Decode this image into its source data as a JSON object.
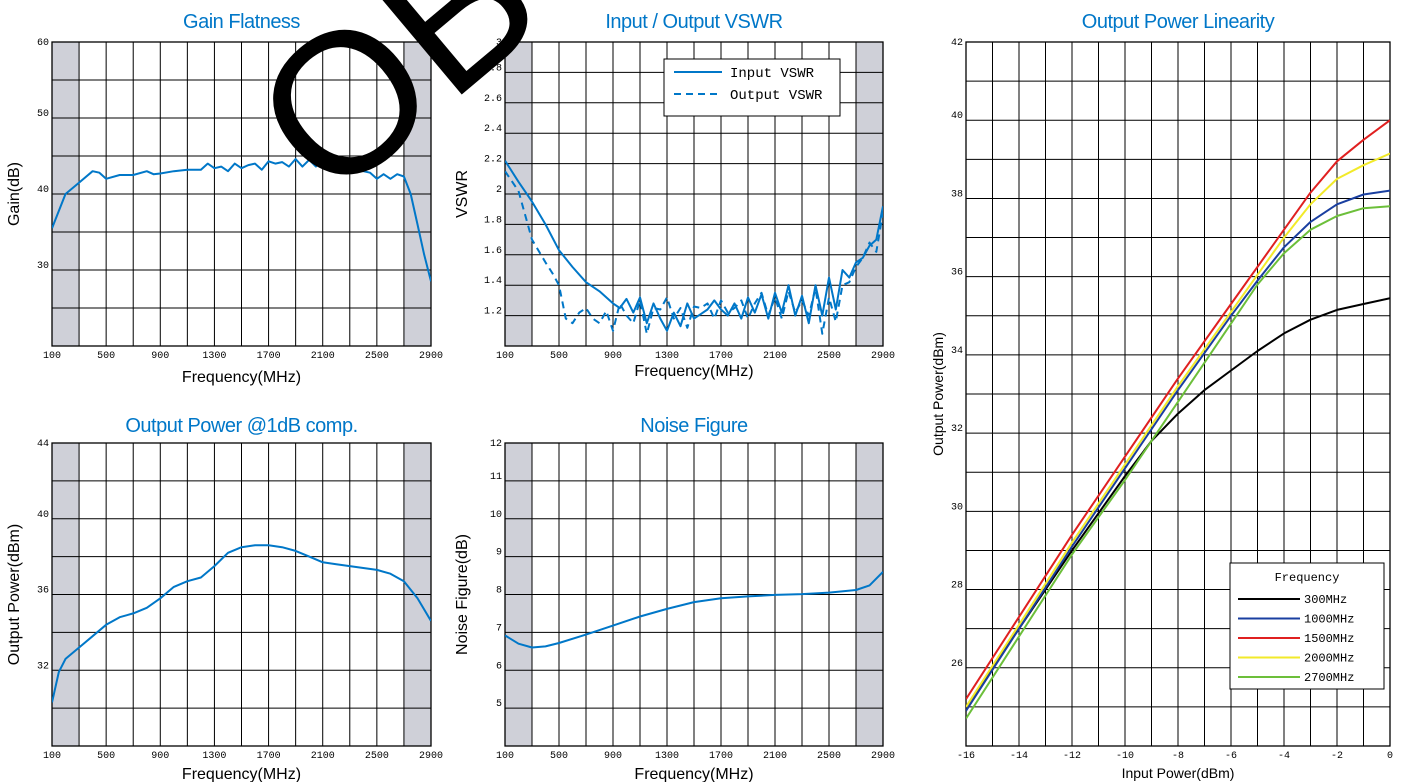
{
  "chart_data": [
    {
      "id": "gain",
      "type": "line",
      "title": "Gain Flatness",
      "xlabel": "Frequency(MHz)",
      "ylabel": "Gain(dB)",
      "xlim": [
        100,
        2900
      ],
      "ylim": [
        20,
        60
      ],
      "xticks": [
        100,
        500,
        900,
        1300,
        1700,
        2100,
        2500,
        2900
      ],
      "yticks": [
        30,
        40,
        50,
        60
      ],
      "shaded": [
        [
          100,
          300
        ],
        [
          2700,
          2900
        ]
      ],
      "series": [
        {
          "color": "#0077c8",
          "dash": false,
          "x": [
            100,
            200,
            300,
            400,
            450,
            500,
            600,
            700,
            800,
            850,
            900,
            1000,
            1100,
            1200,
            1250,
            1300,
            1350,
            1400,
            1450,
            1500,
            1550,
            1600,
            1650,
            1700,
            1750,
            1800,
            1850,
            1900,
            1950,
            2000,
            2050,
            2100,
            2150,
            2200,
            2250,
            2300,
            2350,
            2400,
            2450,
            2500,
            2550,
            2600,
            2650,
            2700,
            2750,
            2800,
            2850,
            2900
          ],
          "y": [
            35.5,
            40.0,
            41.5,
            43.0,
            42.8,
            42.0,
            42.5,
            42.5,
            43.0,
            42.6,
            42.7,
            43.0,
            43.2,
            43.2,
            44.0,
            43.4,
            43.6,
            43.0,
            44.0,
            43.4,
            43.8,
            44.0,
            43.2,
            44.3,
            44.0,
            44.2,
            43.6,
            44.6,
            43.6,
            44.5,
            43.6,
            44.7,
            43.8,
            44.4,
            43.6,
            44.2,
            43.4,
            43.0,
            42.8,
            42.0,
            42.6,
            42.0,
            42.6,
            42.3,
            40.0,
            36.0,
            32.0,
            28.5
          ]
        }
      ]
    },
    {
      "id": "vswr",
      "type": "line",
      "title": "Input / Output VSWR",
      "xlabel": "Frequency(MHz)",
      "ylabel": "VSWR",
      "xlim": [
        100,
        2900
      ],
      "ylim": [
        1.0,
        3.0
      ],
      "xticks": [
        100,
        500,
        900,
        1300,
        1700,
        2100,
        2500,
        2900
      ],
      "yticks": [
        1.2,
        1.4,
        1.6,
        1.8,
        2.0,
        2.2,
        2.4,
        2.6,
        2.8,
        3.0
      ],
      "shaded": [
        [
          100,
          300
        ],
        [
          2700,
          2900
        ]
      ],
      "legend": [
        "Input VSWR",
        "Output VSWR"
      ],
      "series": [
        {
          "name": "Input VSWR",
          "color": "#0077c8",
          "dash": false,
          "x": [
            100,
            200,
            300,
            400,
            500,
            600,
            700,
            800,
            900,
            950,
            1000,
            1050,
            1100,
            1150,
            1200,
            1250,
            1300,
            1350,
            1400,
            1450,
            1500,
            1550,
            1600,
            1650,
            1700,
            1750,
            1800,
            1850,
            1900,
            1950,
            2000,
            2050,
            2100,
            2150,
            2200,
            2250,
            2300,
            2350,
            2400,
            2450,
            2500,
            2550,
            2600,
            2650,
            2700,
            2750,
            2800,
            2850,
            2900
          ],
          "y": [
            2.22,
            2.08,
            1.95,
            1.8,
            1.63,
            1.52,
            1.42,
            1.36,
            1.28,
            1.25,
            1.31,
            1.22,
            1.32,
            1.15,
            1.28,
            1.18,
            1.1,
            1.22,
            1.13,
            1.28,
            1.18,
            1.21,
            1.24,
            1.3,
            1.24,
            1.2,
            1.28,
            1.18,
            1.32,
            1.22,
            1.34,
            1.18,
            1.35,
            1.22,
            1.4,
            1.2,
            1.33,
            1.15,
            1.4,
            1.2,
            1.45,
            1.24,
            1.5,
            1.45,
            1.55,
            1.58,
            1.66,
            1.7,
            1.92
          ]
        },
        {
          "name": "Output VSWR",
          "color": "#0077c8",
          "dash": true,
          "x": [
            100,
            200,
            300,
            400,
            450,
            500,
            550,
            600,
            650,
            700,
            750,
            800,
            850,
            900,
            950,
            1000,
            1050,
            1100,
            1150,
            1200,
            1250,
            1300,
            1350,
            1400,
            1450,
            1500,
            1550,
            1600,
            1650,
            1700,
            1750,
            1800,
            1850,
            1900,
            1950,
            2000,
            2050,
            2100,
            2150,
            2200,
            2250,
            2300,
            2350,
            2400,
            2450,
            2500,
            2550,
            2600,
            2650,
            2700,
            2750,
            2800,
            2850,
            2900
          ],
          "y": [
            2.15,
            2.02,
            1.7,
            1.55,
            1.48,
            1.4,
            1.18,
            1.15,
            1.22,
            1.25,
            1.18,
            1.15,
            1.23,
            1.1,
            1.28,
            1.2,
            1.15,
            1.3,
            1.08,
            1.25,
            1.24,
            1.32,
            1.18,
            1.25,
            1.12,
            1.26,
            1.25,
            1.28,
            1.18,
            1.3,
            1.22,
            1.25,
            1.3,
            1.18,
            1.28,
            1.35,
            1.2,
            1.32,
            1.18,
            1.36,
            1.22,
            1.3,
            1.2,
            1.38,
            1.08,
            1.32,
            1.16,
            1.4,
            1.42,
            1.52,
            1.58,
            1.68,
            1.62,
            1.88
          ]
        }
      ]
    },
    {
      "id": "p1db",
      "type": "line",
      "title": "Output Power @1dB comp.",
      "xlabel": "Frequency(MHz)",
      "ylabel": "Output Power(dBm)",
      "xlim": [
        100,
        2900
      ],
      "ylim": [
        28,
        44
      ],
      "xticks": [
        100,
        500,
        900,
        1300,
        1700,
        2100,
        2500,
        2900
      ],
      "yticks": [
        32,
        36,
        40,
        44
      ],
      "shaded": [
        [
          100,
          300
        ],
        [
          2700,
          2900
        ]
      ],
      "series": [
        {
          "color": "#0077c8",
          "dash": false,
          "x": [
            100,
            150,
            200,
            300,
            400,
            500,
            600,
            700,
            800,
            900,
            1000,
            1100,
            1200,
            1300,
            1400,
            1500,
            1600,
            1700,
            1800,
            1900,
            2000,
            2100,
            2200,
            2300,
            2400,
            2500,
            2600,
            2700,
            2800,
            2900
          ],
          "y": [
            30.3,
            31.9,
            32.6,
            33.2,
            33.8,
            34.4,
            34.8,
            35.0,
            35.3,
            35.8,
            36.4,
            36.7,
            36.9,
            37.5,
            38.2,
            38.5,
            38.6,
            38.6,
            38.5,
            38.3,
            38.0,
            37.7,
            37.6,
            37.5,
            37.4,
            37.3,
            37.1,
            36.7,
            35.8,
            34.6
          ]
        }
      ]
    },
    {
      "id": "nf",
      "type": "line",
      "title": "Noise Figure",
      "xlabel": "Frequency(MHz)",
      "ylabel": "Noise Figure(dB)",
      "xlim": [
        100,
        2900
      ],
      "ylim": [
        4,
        12
      ],
      "xticks": [
        100,
        500,
        900,
        1300,
        1700,
        2100,
        2500,
        2900
      ],
      "yticks": [
        5,
        6,
        7,
        8,
        9,
        10,
        11,
        12
      ],
      "shaded": [
        [
          100,
          300
        ],
        [
          2700,
          2900
        ]
      ],
      "series": [
        {
          "color": "#0077c8",
          "dash": false,
          "x": [
            100,
            200,
            300,
            400,
            500,
            700,
            900,
            1100,
            1300,
            1500,
            1700,
            1900,
            2100,
            2300,
            2500,
            2700,
            2800,
            2900
          ],
          "y": [
            6.92,
            6.7,
            6.6,
            6.63,
            6.72,
            6.94,
            7.18,
            7.42,
            7.62,
            7.8,
            7.9,
            7.95,
            7.99,
            8.01,
            8.05,
            8.12,
            8.24,
            8.6
          ]
        }
      ]
    },
    {
      "id": "lin",
      "type": "line",
      "title": "Output Power Linearity",
      "xlabel": "Input Power(dBm)",
      "ylabel": "Output Power(dBm)",
      "xlim": [
        -16,
        0
      ],
      "ylim": [
        24,
        42
      ],
      "xticks": [
        -16,
        -14,
        -12,
        -10,
        -8,
        -6,
        -4,
        -2,
        0
      ],
      "yticks": [
        26,
        28,
        30,
        32,
        34,
        36,
        38,
        40,
        42
      ],
      "legend_title": "Frequency",
      "series": [
        {
          "name": "300MHz",
          "color": "#000000",
          "dash": false,
          "x": [
            -16,
            -14,
            -12,
            -10,
            -9,
            -8,
            -7,
            -6,
            -5,
            -4,
            -3,
            -2,
            -1,
            0
          ],
          "y": [
            25.0,
            27.0,
            29.0,
            30.9,
            31.8,
            32.5,
            33.1,
            33.6,
            34.1,
            34.55,
            34.9,
            35.15,
            35.3,
            35.45
          ]
        },
        {
          "name": "1000MHz",
          "color": "#1a3fa0",
          "dash": false,
          "x": [
            -16,
            -14,
            -12,
            -10,
            -8,
            -6,
            -5,
            -4,
            -3,
            -2,
            -1,
            0
          ],
          "y": [
            24.9,
            27.0,
            29.1,
            31.1,
            33.1,
            35.0,
            35.9,
            36.75,
            37.4,
            37.85,
            38.1,
            38.2
          ]
        },
        {
          "name": "1500MHz",
          "color": "#e02020",
          "dash": false,
          "x": [
            -16,
            -14,
            -12,
            -10,
            -8,
            -6,
            -4,
            -3,
            -2,
            -1,
            0
          ],
          "y": [
            25.2,
            27.3,
            29.4,
            31.4,
            33.4,
            35.3,
            37.2,
            38.15,
            38.95,
            39.5,
            40.0
          ]
        },
        {
          "name": "2000MHz",
          "color": "#f2ea2a",
          "dash": false,
          "x": [
            -16,
            -14,
            -12,
            -10,
            -8,
            -6,
            -4,
            -3,
            -2,
            -1,
            0
          ],
          "y": [
            25.0,
            27.1,
            29.2,
            31.2,
            33.2,
            35.1,
            37.0,
            37.85,
            38.5,
            38.85,
            39.15
          ]
        },
        {
          "name": "2700MHz",
          "color": "#6cbf3a",
          "dash": false,
          "x": [
            -16,
            -14,
            -12,
            -10,
            -8,
            -6,
            -5,
            -4,
            -3,
            -2,
            -1,
            0
          ],
          "y": [
            24.7,
            26.8,
            28.9,
            30.8,
            32.8,
            34.8,
            35.8,
            36.6,
            37.2,
            37.55,
            37.75,
            37.8
          ]
        }
      ]
    }
  ],
  "watermark": "OBS"
}
